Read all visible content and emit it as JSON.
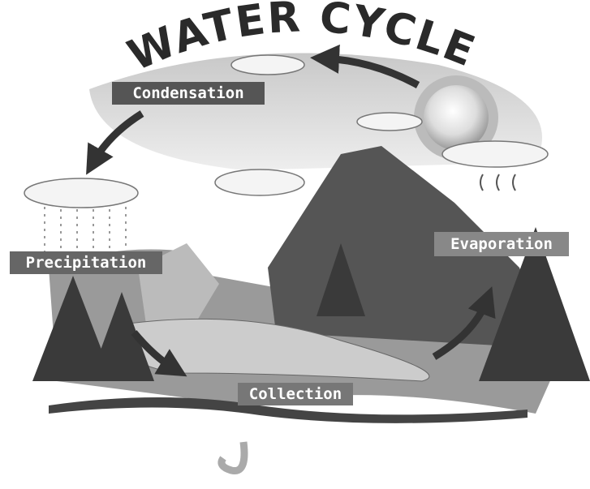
{
  "title": "WATER CYCLE",
  "labels": {
    "condensation": "Condensation",
    "precipitation": "Precipitation",
    "evaporation": "Evaporation",
    "collection": "Collection"
  }
}
